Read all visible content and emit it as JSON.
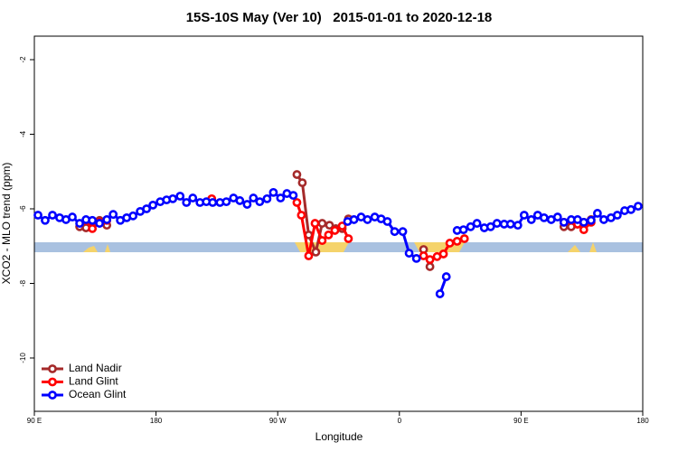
{
  "chart_data": {
    "type": "line",
    "title": "15S-10S May (Ver 10)   2015-01-01 to 2020-12-18",
    "x_label": "Longitude",
    "y_label": "XCO2 - MLO trend (ppm)",
    "xlim": [
      90,
      540
    ],
    "xticks": [
      {
        "value": 90,
        "label": "90 E"
      },
      {
        "value": 180,
        "label": "180"
      },
      {
        "value": 270,
        "label": "90 W"
      },
      {
        "value": 360,
        "label": "0"
      },
      {
        "value": 450,
        "label": "90 E"
      },
      {
        "value": 540,
        "label": "180"
      }
    ],
    "ylim": [
      -11.43,
      -1.37
    ],
    "yticks": [
      -10,
      -8,
      -6,
      -4,
      -2
    ],
    "legend": "bottomleft",
    "series": [
      {
        "name": "Land Nadir",
        "color": "#a52a2a",
        "x": [
          123.5,
          128.2,
          132.9,
          138.2,
          143.6,
          null,
          284.2,
          288.2,
          292.9,
          298.2,
          302.9,
          308.3,
          313.0,
          317.7,
          322.3,
          null,
          377.9,
          382.6,
          null,
          481.7,
          487.1,
          491.8,
          496.4,
          501.8
        ],
        "values": [
          -6.48,
          -6.51,
          -6.36,
          -6.31,
          -6.44,
          null,
          -5.08,
          -5.3,
          -6.7,
          -7.16,
          -6.39,
          -6.44,
          -6.53,
          -6.53,
          -6.27,
          null,
          -7.09,
          -7.55,
          null,
          -6.48,
          -6.48,
          -6.41,
          -6.36,
          -6.29
        ]
      },
      {
        "name": "Land Glint",
        "color": "#ff0000",
        "x": [
          128.2,
          132.9,
          138.2,
          143.6,
          null,
          221.2,
          null,
          284.2,
          287.5,
          292.9,
          297.6,
          302.9,
          307.6,
          312.3,
          317.7,
          322.3,
          null,
          377.9,
          382.6,
          387.9,
          392.6,
          397.3,
          402.7,
          408.1,
          null,
          481.7,
          487.1,
          491.8,
          496.4,
          501.8
        ],
        "values": [
          -6.31,
          -6.53,
          -6.36,
          -6.31,
          null,
          -5.73,
          null,
          -5.83,
          -6.17,
          -7.26,
          -6.39,
          -6.85,
          -6.7,
          -6.58,
          -6.46,
          -6.8,
          null,
          -7.26,
          -7.36,
          -7.28,
          -7.21,
          -6.92,
          -6.87,
          -6.8,
          null,
          -6.36,
          -6.31,
          -6.41,
          -6.56,
          -6.36
        ]
      },
      {
        "name": "Ocean Glint",
        "color": "#0000ff",
        "x": [
          92.7,
          98.0,
          103.4,
          108.7,
          113.4,
          118.1,
          123.5,
          128.2,
          132.9,
          138.2,
          143.6,
          148.3,
          153.6,
          158.3,
          163.0,
          168.3,
          173.0,
          177.7,
          183.1,
          187.8,
          192.4,
          197.8,
          202.5,
          207.2,
          212.5,
          217.2,
          221.9,
          227.3,
          232.0,
          237.3,
          242.0,
          247.4,
          252.0,
          256.7,
          262.1,
          266.8,
          272.1,
          276.8,
          281.5,
          null,
          321.7,
          326.4,
          331.7,
          336.4,
          341.8,
          346.5,
          351.1,
          356.5,
          362.5,
          367.2,
          372.6,
          null,
          390.0,
          394.7,
          null,
          402.7,
          407.4,
          412.7,
          417.4,
          422.8,
          427.5,
          432.2,
          437.5,
          442.2,
          447.6,
          452.3,
          457.6,
          462.3,
          467.0,
          472.3,
          477.0,
          481.7,
          487.1,
          491.8,
          496.4,
          501.8,
          506.5,
          511.2,
          516.5,
          521.2,
          526.6,
          531.3,
          536.6
        ],
        "values": [
          -6.17,
          -6.31,
          -6.17,
          -6.24,
          -6.29,
          -6.22,
          -6.39,
          -6.29,
          -6.31,
          -6.39,
          -6.29,
          -6.15,
          -6.31,
          -6.24,
          -6.19,
          -6.07,
          -6.0,
          -5.9,
          -5.81,
          -5.76,
          -5.73,
          -5.66,
          -5.83,
          -5.71,
          -5.83,
          -5.81,
          -5.83,
          -5.83,
          -5.81,
          -5.71,
          -5.78,
          -5.88,
          -5.71,
          -5.81,
          -5.73,
          -5.56,
          -5.71,
          -5.59,
          -5.64,
          null,
          -6.34,
          -6.29,
          -6.22,
          -6.29,
          -6.22,
          -6.27,
          -6.34,
          -6.61,
          -6.61,
          -7.19,
          -7.33,
          null,
          -8.28,
          -7.82,
          null,
          -6.58,
          -6.56,
          -6.48,
          -6.39,
          -6.51,
          -6.48,
          -6.39,
          -6.41,
          -6.41,
          -6.44,
          -6.17,
          -6.29,
          -6.17,
          -6.24,
          -6.29,
          -6.22,
          -6.36,
          -6.29,
          -6.29,
          -6.36,
          -6.31,
          -6.12,
          -6.29,
          -6.24,
          -6.17,
          -6.05,
          -6.02,
          -5.93
        ]
      }
    ]
  }
}
